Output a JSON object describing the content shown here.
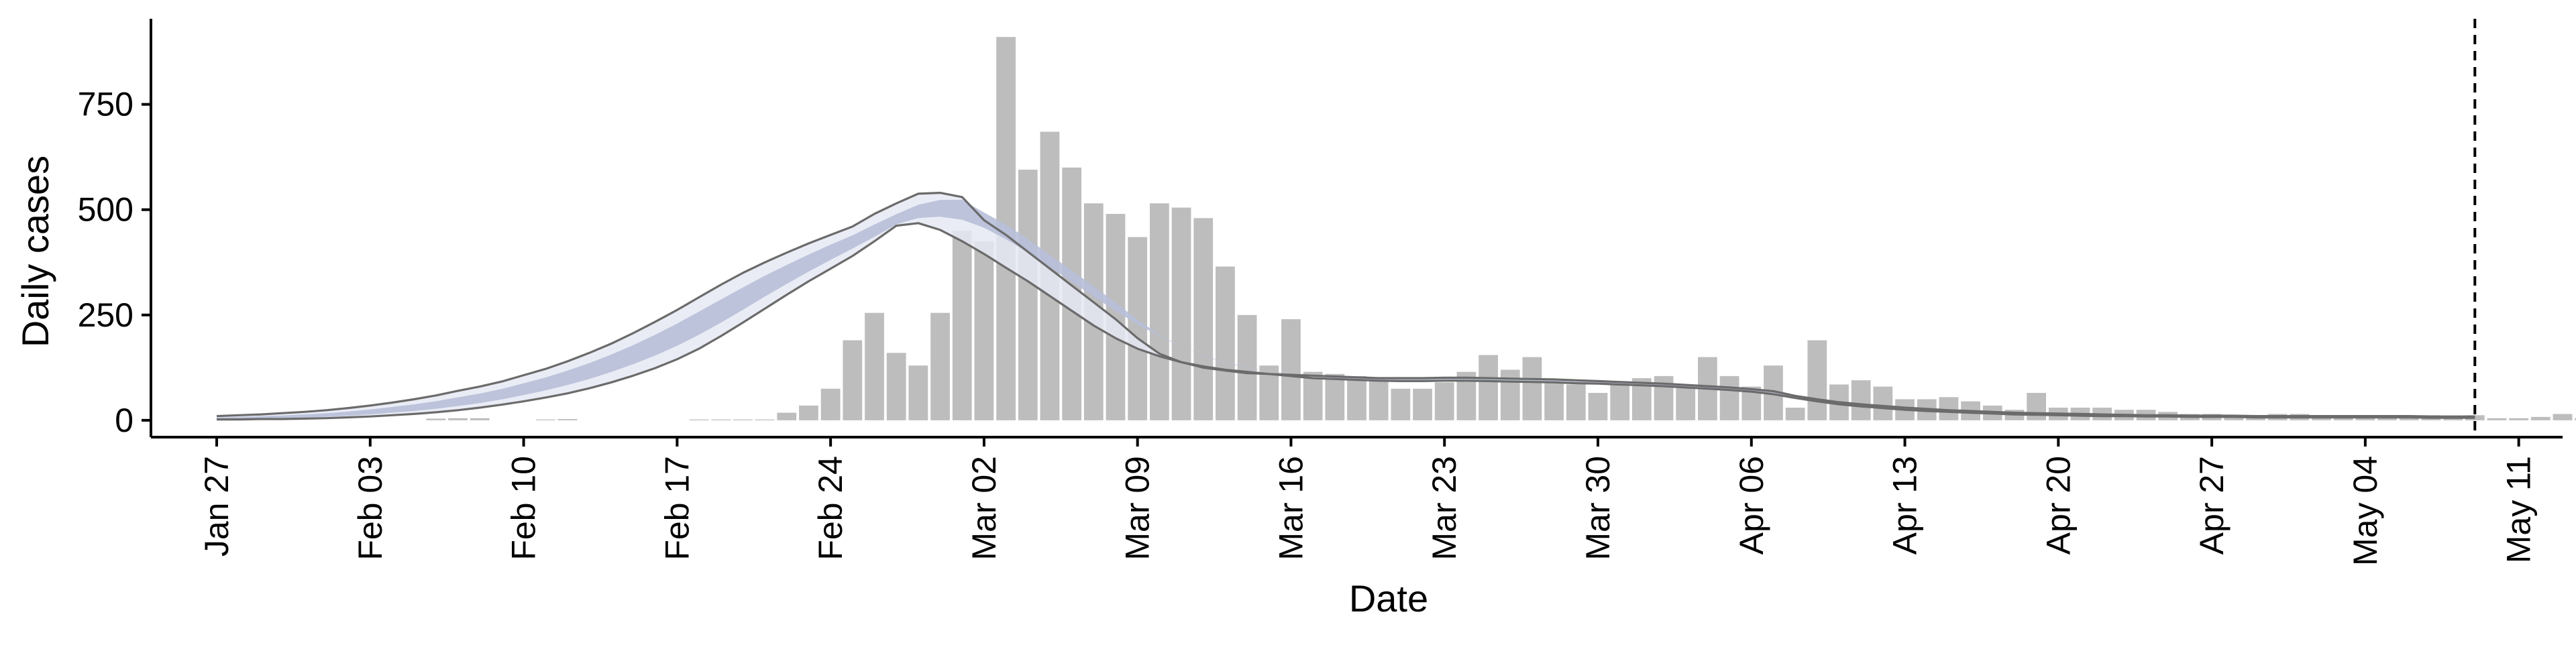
{
  "chart_data": {
    "type": "bar",
    "title": "",
    "xlabel": "Date",
    "ylabel": "Daily cases",
    "x_start": "2020-01-27",
    "x_end": "2020-05-13",
    "xlim": [
      "2020-01-24",
      "2020-05-13"
    ],
    "ylim": [
      -40,
      950
    ],
    "x_ticks": [
      "Jan 27",
      "Feb 03",
      "Feb 10",
      "Feb 17",
      "Feb 24",
      "Mar 02",
      "Mar 09",
      "Mar 16",
      "Mar 23",
      "Mar 30",
      "Apr 06",
      "Apr 13",
      "Apr 20",
      "Apr 27",
      "May 04",
      "May 11"
    ],
    "y_ticks": [
      "0",
      "250",
      "500",
      "750"
    ],
    "y_tick_values": [
      0,
      250,
      500,
      750
    ],
    "vline_date": "2020-05-09",
    "grid": false,
    "colors": {
      "bars": "#bdbdbd",
      "band_outer": "#e6e9f3",
      "band_inner": "#b7bfd8",
      "band_edge": "#6b6b6b",
      "median": "#4a4a4a",
      "vline": "#000000"
    },
    "daily_cases": [
      0,
      0,
      0,
      0,
      0,
      0,
      0,
      0,
      0,
      0,
      4,
      5,
      5,
      0,
      0,
      2,
      3,
      0,
      0,
      0,
      0,
      0,
      2,
      2,
      2,
      2,
      18,
      35,
      75,
      190,
      255,
      160,
      130,
      255,
      450,
      425,
      910,
      595,
      685,
      600,
      515,
      490,
      435,
      515,
      505,
      480,
      365,
      250,
      130,
      240,
      115,
      110,
      105,
      100,
      75,
      75,
      90,
      115,
      155,
      120,
      150,
      90,
      85,
      65,
      90,
      100,
      105,
      85,
      150,
      105,
      80,
      130,
      30,
      190,
      85,
      95,
      80,
      50,
      50,
      55,
      45,
      35,
      25,
      65,
      30,
      30,
      30,
      25,
      25,
      20,
      15,
      15,
      10,
      10,
      15,
      15,
      10,
      12,
      10,
      12,
      12,
      12,
      10,
      12,
      5,
      5,
      8,
      15,
      5,
      5,
      5,
      18
    ],
    "estimate_median": [
      4,
      5,
      6,
      7,
      9,
      11,
      14,
      18,
      23,
      28,
      34,
      42,
      50,
      60,
      72,
      85,
      100,
      116,
      135,
      155,
      178,
      203,
      230,
      258,
      287,
      317,
      345,
      372,
      398,
      422,
      444,
      468,
      490,
      509,
      518,
      508,
      485,
      455,
      420,
      385,
      350,
      312,
      275,
      240,
      205,
      176,
      152,
      135,
      122,
      114,
      107,
      102,
      99,
      97,
      96,
      96,
      97,
      97,
      96,
      95,
      94,
      93,
      91,
      90,
      88,
      86,
      84,
      81,
      78,
      75,
      71,
      66,
      56,
      48,
      41,
      36,
      32,
      28,
      25,
      22,
      20,
      18,
      16,
      15,
      14,
      13,
      12,
      11,
      10,
      10,
      9,
      9,
      9,
      8,
      8,
      8,
      8,
      8,
      8,
      8,
      8,
      7,
      7,
      7
    ],
    "estimate_lower": [
      2,
      2,
      3,
      3,
      4,
      5,
      7,
      9,
      12,
      15,
      19,
      24,
      30,
      37,
      45,
      54,
      64,
      76,
      90,
      106,
      124,
      145,
      170,
      200,
      232,
      265,
      298,
      330,
      360,
      390,
      425,
      462,
      468,
      452,
      425,
      395,
      362,
      330,
      295,
      260,
      225,
      195,
      170,
      152,
      138,
      128,
      120,
      115,
      110,
      105,
      100,
      98,
      96,
      94,
      93,
      93,
      94,
      94,
      93,
      92,
      91,
      90,
      88,
      87,
      85,
      83,
      81,
      78,
      75,
      72,
      68,
      62,
      53,
      45,
      38,
      33,
      29,
      25,
      22,
      20,
      18,
      16,
      14,
      13,
      12,
      11,
      10,
      10,
      9,
      9,
      8,
      8,
      8,
      7,
      7,
      7,
      7,
      7,
      7,
      7,
      7,
      6,
      6,
      6
    ],
    "estimate_upper": [
      10,
      12,
      14,
      17,
      20,
      24,
      29,
      35,
      42,
      50,
      59,
      70,
      80,
      92,
      107,
      122,
      140,
      160,
      182,
      207,
      234,
      262,
      292,
      322,
      350,
      375,
      398,
      420,
      440,
      460,
      490,
      515,
      538,
      540,
      530,
      475,
      440,
      400,
      360,
      320,
      280,
      240,
      195,
      158,
      138,
      125,
      118,
      112,
      110,
      108,
      106,
      104,
      102,
      100,
      100,
      100,
      101,
      101,
      100,
      99,
      98,
      97,
      95,
      93,
      91,
      89,
      87,
      84,
      81,
      78,
      74,
      69,
      58,
      50,
      43,
      38,
      34,
      30,
      27,
      24,
      22,
      20,
      18,
      17,
      16,
      15,
      14,
      13,
      12,
      12,
      11,
      11,
      11,
      10,
      10,
      10,
      10,
      10,
      10,
      10,
      10,
      9,
      9,
      9
    ]
  }
}
